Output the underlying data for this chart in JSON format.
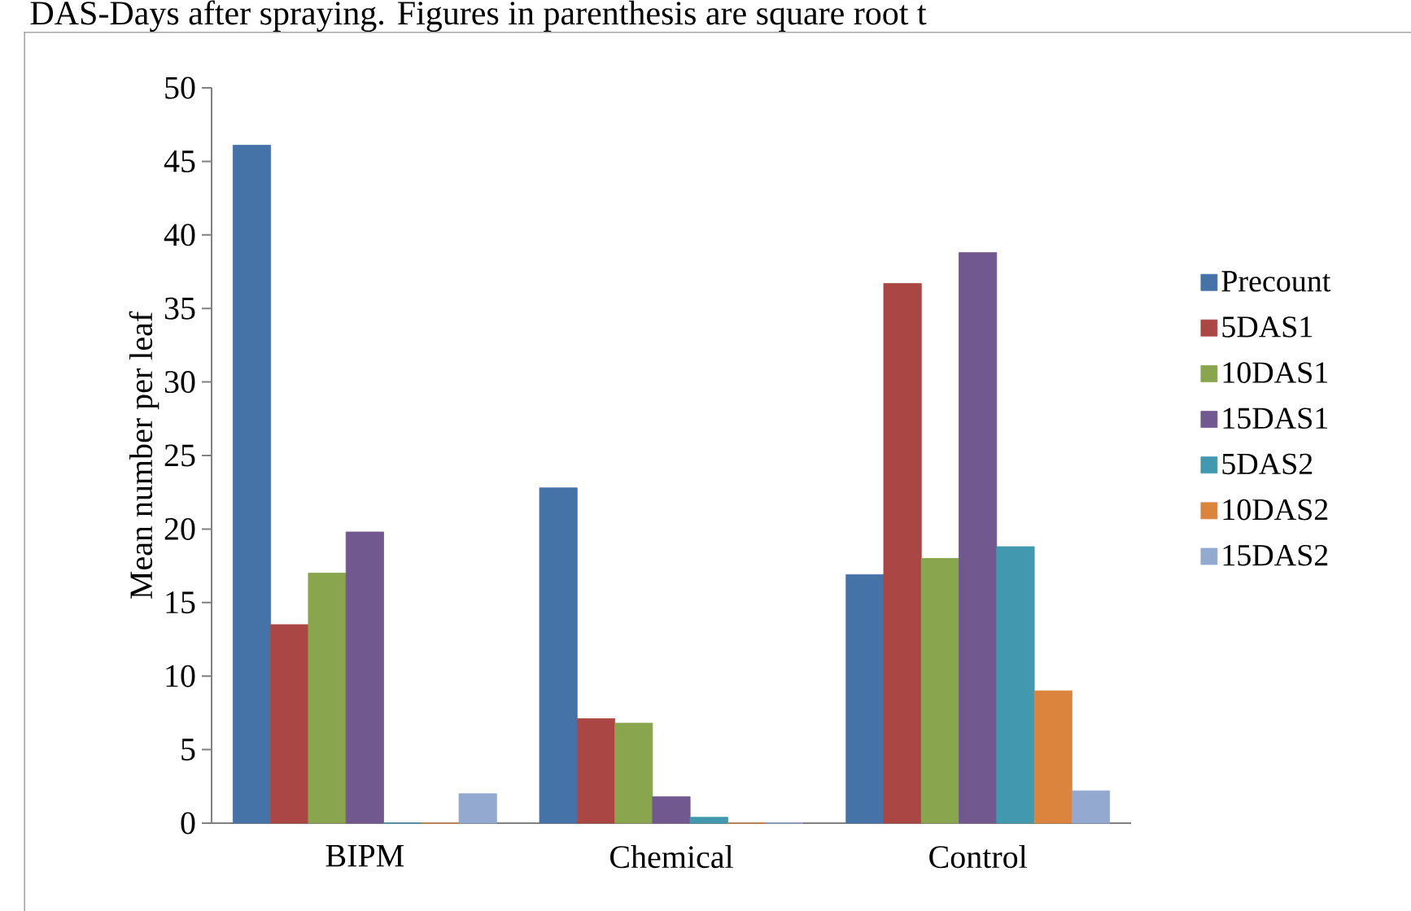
{
  "chart_data": {
    "type": "bar",
    "ylabel": "Mean number per leaf",
    "annotations": [
      "DAS-Days after spraying. Figures in parenthesis are square root t"
    ],
    "categories": [
      "BIPM",
      "Chemical",
      "Control"
    ],
    "series": [
      {
        "name": "Precount",
        "color": "#4572a7",
        "values": [
          46.1,
          22.8,
          16.9
        ]
      },
      {
        "name": "5DAS1",
        "color": "#aa4643",
        "values": [
          13.5,
          7.1,
          36.7
        ]
      },
      {
        "name": "10DAS1",
        "color": "#89a54e",
        "values": [
          17.0,
          6.8,
          18.0
        ]
      },
      {
        "name": "15DAS1",
        "color": "#71588f",
        "values": [
          19.8,
          1.8,
          38.8
        ]
      },
      {
        "name": "5DAS2",
        "color": "#4198af",
        "values": [
          0,
          0.4,
          18.8
        ]
      },
      {
        "name": "10DAS2",
        "color": "#db843d",
        "values": [
          0,
          0,
          9.0
        ]
      },
      {
        "name": "15DAS2",
        "color": "#93a9cf",
        "values": [
          2.0,
          0,
          2.2
        ]
      }
    ],
    "ylim": [
      0,
      50
    ],
    "yticks": [
      0,
      5,
      10,
      15,
      20,
      25,
      30,
      35,
      40,
      45,
      50
    ],
    "legend": "right",
    "grid": false
  }
}
